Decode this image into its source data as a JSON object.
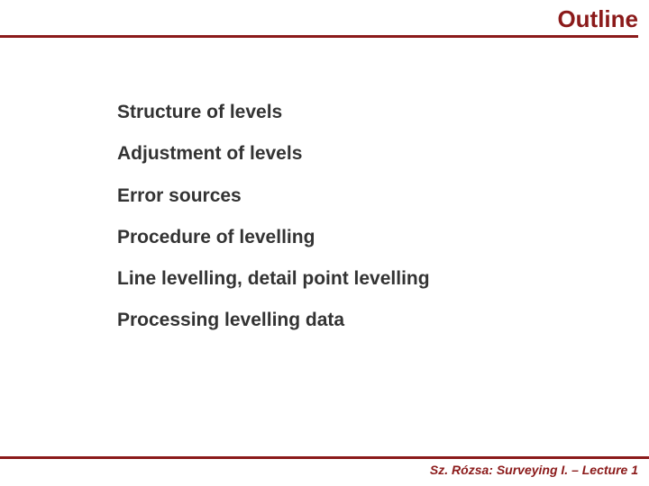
{
  "colors": {
    "accent": "#8b1a1a",
    "text": "#333333",
    "background": "#ffffff"
  },
  "header": {
    "title": "Outline"
  },
  "outline": {
    "items": [
      "Structure of levels",
      "Adjustment of levels",
      "Error sources",
      "Procedure of levelling",
      "Line levelling, detail point levelling",
      "Processing levelling data"
    ]
  },
  "footer": {
    "text": "Sz. Rózsa: Surveying I. – Lecture 1"
  },
  "typography": {
    "title_fontsize": 26,
    "item_fontsize": 21,
    "footer_fontsize": 14,
    "font_family": "Verdana"
  }
}
